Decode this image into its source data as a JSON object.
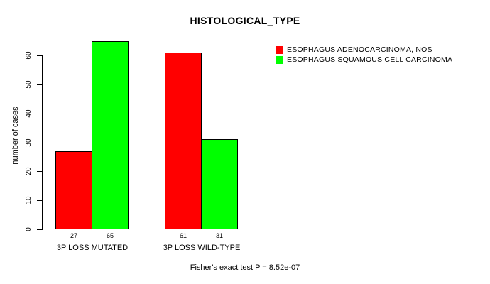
{
  "chart_data": {
    "type": "bar",
    "title": "HISTOLOGICAL_TYPE",
    "ylabel": "number of cases",
    "xlabel": "",
    "categories": [
      "3P LOSS MUTATED",
      "3P LOSS WILD-TYPE"
    ],
    "series": [
      {
        "name": "ESOPHAGUS ADENOCARCINOMA, NOS",
        "color": "#ff0000",
        "values": [
          27,
          61
        ]
      },
      {
        "name": "ESOPHAGUS SQUAMOUS CELL CARCINOMA",
        "color": "#00ff00",
        "values": [
          65,
          31
        ]
      }
    ],
    "bar_value_labels": [
      [
        27,
        65
      ],
      [
        61,
        31
      ]
    ],
    "ylim": [
      0,
      65
    ],
    "yticks": [
      0,
      10,
      20,
      30,
      40,
      50,
      60
    ],
    "grid": false,
    "legend_position": "right",
    "annotation": "Fisher's exact test P = 8.52e-07"
  }
}
